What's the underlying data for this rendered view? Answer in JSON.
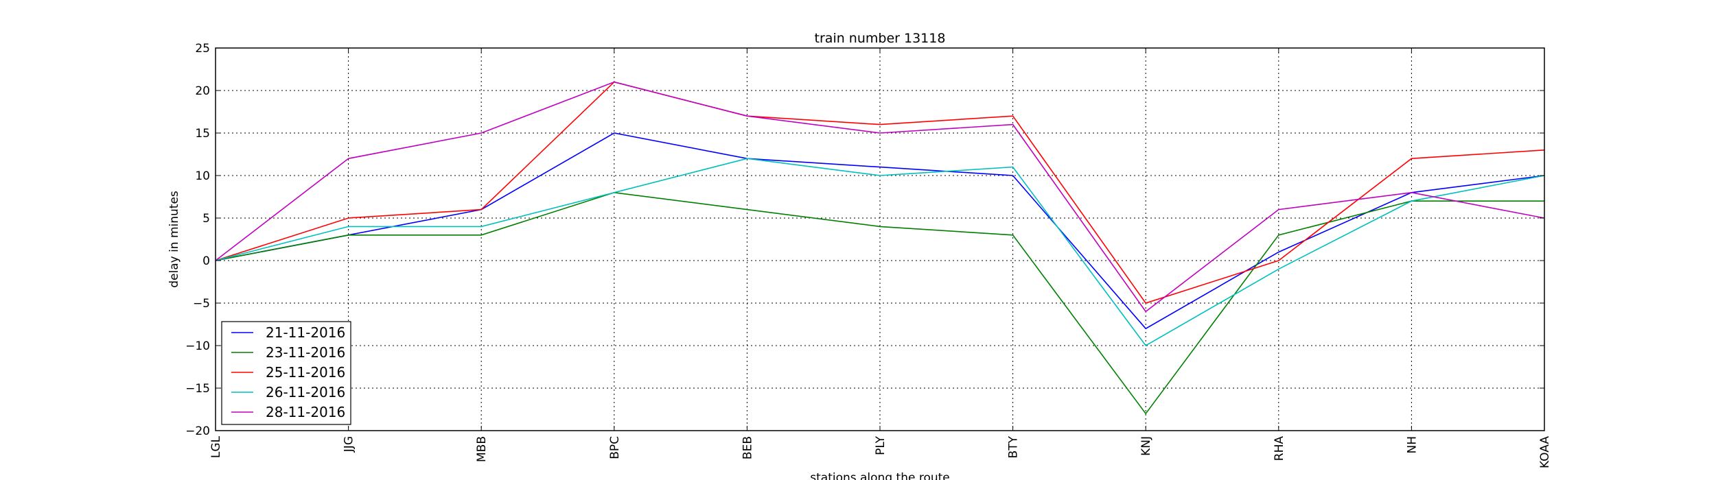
{
  "chart_data": {
    "type": "line",
    "title": "train number 13118",
    "xlabel": "stations along the route",
    "ylabel": "delay in minutes",
    "categories": [
      "LGL",
      "JJG",
      "MBB",
      "BPC",
      "BEB",
      "PLY",
      "BTY",
      "KNJ",
      "RHA",
      "NH",
      "KOAA"
    ],
    "ylim": [
      -20,
      25
    ],
    "yticks": [
      -20,
      -15,
      -10,
      -5,
      0,
      5,
      10,
      15,
      20,
      25
    ],
    "grid": true,
    "legend_position": "lower-left",
    "series": [
      {
        "name": "21-11-2016",
        "color": "#0000ff",
        "values": [
          0,
          3,
          6,
          15,
          12,
          11,
          10,
          -8,
          1,
          8,
          10
        ]
      },
      {
        "name": "23-11-2016",
        "color": "#008000",
        "values": [
          0,
          3,
          3,
          8,
          6,
          4,
          3,
          -18,
          3,
          7,
          7
        ]
      },
      {
        "name": "25-11-2016",
        "color": "#ff0000",
        "values": [
          0,
          5,
          6,
          21,
          17,
          16,
          17,
          -5,
          0,
          12,
          13
        ]
      },
      {
        "name": "26-11-2016",
        "color": "#00bfbf",
        "values": [
          0,
          4,
          4,
          8,
          12,
          10,
          11,
          -10,
          -1,
          7,
          10
        ]
      },
      {
        "name": "28-11-2016",
        "color": "#bf00bf",
        "values": [
          0,
          12,
          15,
          21,
          17,
          15,
          16,
          -6,
          6,
          8,
          5
        ]
      }
    ]
  }
}
